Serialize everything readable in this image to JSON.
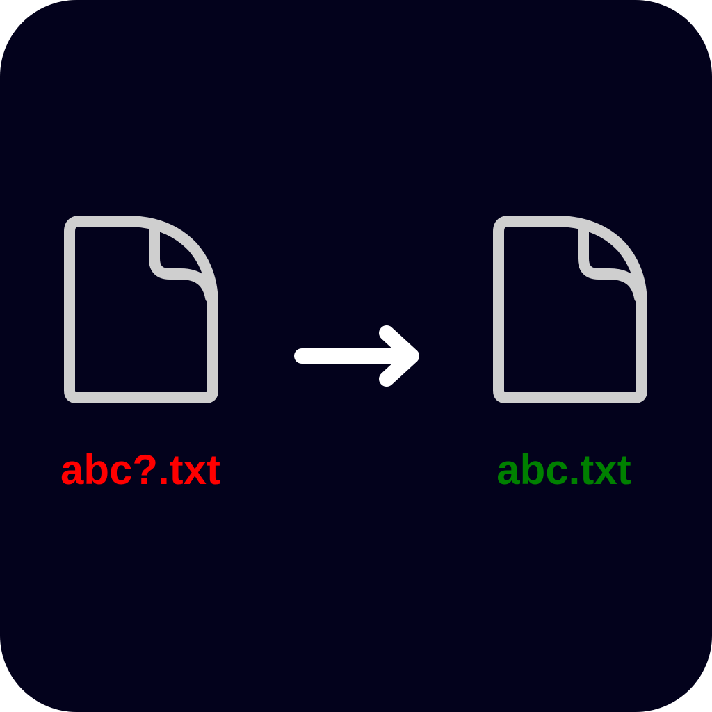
{
  "colors": {
    "background": "#03021c",
    "icon_stroke": "#cfcfcf",
    "arrow": "#ffffff",
    "invalid_name": "#ff0000",
    "valid_name": "#008000"
  },
  "source_file": {
    "icon": "file-icon",
    "name": "abc?.txt"
  },
  "arrow": {
    "icon": "arrow-right-icon"
  },
  "target_file": {
    "icon": "file-icon",
    "name": "abc.txt"
  }
}
